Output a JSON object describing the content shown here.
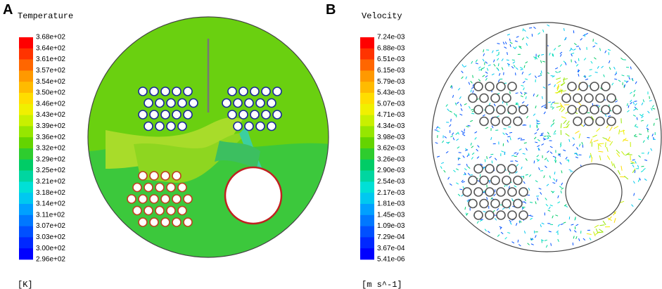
{
  "panels": [
    {
      "letter": "A",
      "title": "Temperature",
      "unit": "[K]",
      "colorbar_labels": [
        "3.68e+02",
        "3.64e+02",
        "3.61e+02",
        "3.57e+02",
        "3.54e+02",
        "3.50e+02",
        "3.46e+02",
        "3.43e+02",
        "3.39e+02",
        "3.36e+02",
        "3.32e+02",
        "3.29e+02",
        "3.25e+02",
        "3.21e+02",
        "3.18e+02",
        "3.14e+02",
        "3.11e+02",
        "3.07e+02",
        "3.03e+02",
        "3.00e+02",
        "2.96e+02"
      ]
    },
    {
      "letter": "B",
      "title": "Velocity",
      "unit": "[m s^-1]",
      "colorbar_labels": [
        "7.24e-03",
        "6.88e-03",
        "6.51e-03",
        "6.15e-03",
        "5.79e-03",
        "5.43e-03",
        "5.07e-03",
        "4.71e-03",
        "4.34e-03",
        "3.98e-03",
        "3.62e-03",
        "3.26e-03",
        "2.90e-03",
        "2.54e-03",
        "2.17e-03",
        "1.81e-03",
        "1.45e-03",
        "1.09e-03",
        "7.29e-04",
        "3.67e-04",
        "5.41e-06"
      ]
    }
  ]
}
